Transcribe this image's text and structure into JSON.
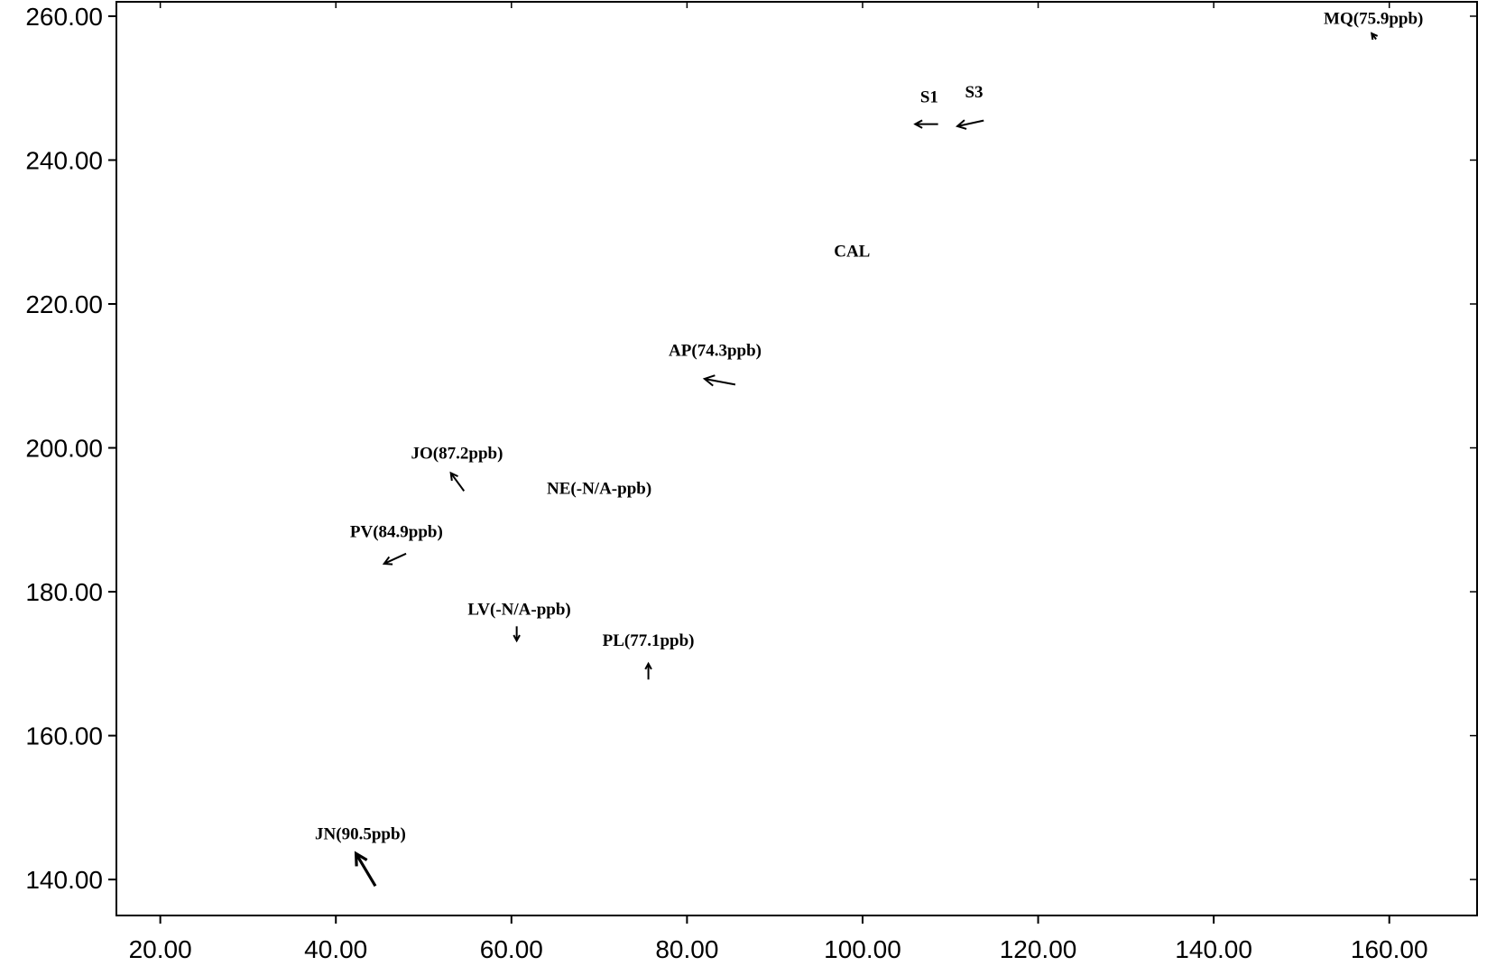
{
  "chart_data": {
    "type": "scatter",
    "title": "",
    "xlabel": "",
    "ylabel": "",
    "xlim": [
      15,
      170
    ],
    "ylim": [
      135,
      262
    ],
    "xticks": [
      "20.00",
      "40.00",
      "60.00",
      "80.00",
      "100.00",
      "120.00",
      "140.00",
      "160.00"
    ],
    "yticks": [
      "140.00",
      "160.00",
      "180.00",
      "200.00",
      "220.00",
      "240.00",
      "260.00"
    ],
    "grid": false,
    "arrow_color": "#000000",
    "points": [
      {
        "label": "MQ(75.9ppb)",
        "x": 158.5,
        "y": 256.8,
        "dx": -0.5,
        "dy": 0.8,
        "text_x": 158.2,
        "text_y": 258.9
      },
      {
        "label": "S1",
        "x": 108.6,
        "y": 245.0,
        "dx": -2.6,
        "dy": 0.0,
        "text_x": 107.6,
        "text_y": 248.0
      },
      {
        "label": "S3",
        "x": 113.8,
        "y": 245.5,
        "dx": -3.0,
        "dy": -0.8,
        "text_x": 112.7,
        "text_y": 248.7
      },
      {
        "label": "CAL",
        "x": 98.8,
        "y": 226.6,
        "dx": 0,
        "dy": 0,
        "text_x": 98.8,
        "text_y": 226.6
      },
      {
        "label": "AP(74.3ppb)",
        "x": 85.5,
        "y": 208.8,
        "dx": -3.5,
        "dy": 0.8,
        "text_x": 83.2,
        "text_y": 212.8
      },
      {
        "label": "JO(87.2ppb)",
        "x": 54.6,
        "y": 194.0,
        "dx": -1.5,
        "dy": 2.5,
        "text_x": 53.8,
        "text_y": 198.5
      },
      {
        "label": "NE(-N/A-ppb)",
        "x": 70.0,
        "y": 193.6,
        "dx": 0,
        "dy": 0,
        "text_x": 70.0,
        "text_y": 193.6
      },
      {
        "label": "PV(84.9ppb)",
        "x": 48.0,
        "y": 185.3,
        "dx": -2.5,
        "dy": -1.4,
        "text_x": 46.9,
        "text_y": 187.6
      },
      {
        "label": "LV(-N/A-ppb)",
        "x": 60.6,
        "y": 175.2,
        "dx": 0.0,
        "dy": -2.0,
        "text_x": 60.9,
        "text_y": 176.8
      },
      {
        "label": "PL(77.1ppb)",
        "x": 75.6,
        "y": 167.8,
        "dx": 0.0,
        "dy": 2.2,
        "text_x": 75.6,
        "text_y": 172.5
      },
      {
        "label": "JN(90.5ppb)",
        "x": 44.5,
        "y": 139.1,
        "dx": -2.2,
        "dy": 4.5,
        "text_x": 42.8,
        "text_y": 145.6
      }
    ]
  }
}
